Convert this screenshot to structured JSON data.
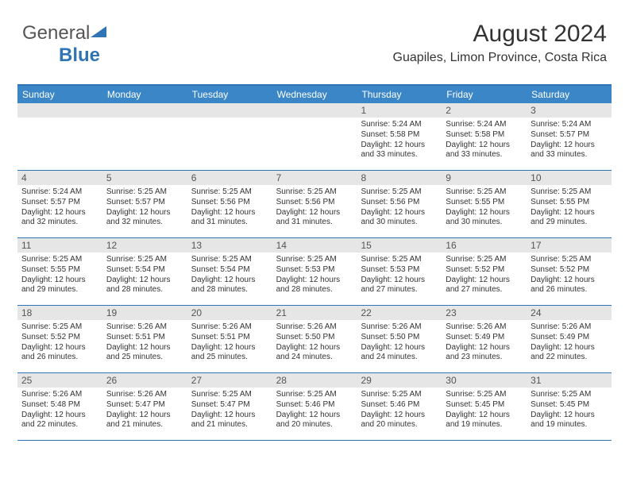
{
  "logo": {
    "text1": "General",
    "text2": "Blue",
    "accent_color": "#2f75b5"
  },
  "header": {
    "title": "August 2024",
    "subtitle": "Guapiles, Limon Province, Costa Rica",
    "title_fontsize": 30,
    "subtitle_fontsize": 16
  },
  "calendar": {
    "type": "table",
    "header_bg": "#3b86c6",
    "header_text_color": "#ffffff",
    "border_color": "#2f75b5",
    "daynum_bg": "#e6e6e6",
    "body_fontsize": 10,
    "weekday_fontsize": 12,
    "weekdays": [
      "Sunday",
      "Monday",
      "Tuesday",
      "Wednesday",
      "Thursday",
      "Friday",
      "Saturday"
    ],
    "weeks": [
      [
        {
          "num": "",
          "lines": []
        },
        {
          "num": "",
          "lines": []
        },
        {
          "num": "",
          "lines": []
        },
        {
          "num": "",
          "lines": []
        },
        {
          "num": "1",
          "lines": [
            "Sunrise: 5:24 AM",
            "Sunset: 5:58 PM",
            "Daylight: 12 hours and 33 minutes."
          ]
        },
        {
          "num": "2",
          "lines": [
            "Sunrise: 5:24 AM",
            "Sunset: 5:58 PM",
            "Daylight: 12 hours and 33 minutes."
          ]
        },
        {
          "num": "3",
          "lines": [
            "Sunrise: 5:24 AM",
            "Sunset: 5:57 PM",
            "Daylight: 12 hours and 33 minutes."
          ]
        }
      ],
      [
        {
          "num": "4",
          "lines": [
            "Sunrise: 5:24 AM",
            "Sunset: 5:57 PM",
            "Daylight: 12 hours and 32 minutes."
          ]
        },
        {
          "num": "5",
          "lines": [
            "Sunrise: 5:25 AM",
            "Sunset: 5:57 PM",
            "Daylight: 12 hours and 32 minutes."
          ]
        },
        {
          "num": "6",
          "lines": [
            "Sunrise: 5:25 AM",
            "Sunset: 5:56 PM",
            "Daylight: 12 hours and 31 minutes."
          ]
        },
        {
          "num": "7",
          "lines": [
            "Sunrise: 5:25 AM",
            "Sunset: 5:56 PM",
            "Daylight: 12 hours and 31 minutes."
          ]
        },
        {
          "num": "8",
          "lines": [
            "Sunrise: 5:25 AM",
            "Sunset: 5:56 PM",
            "Daylight: 12 hours and 30 minutes."
          ]
        },
        {
          "num": "9",
          "lines": [
            "Sunrise: 5:25 AM",
            "Sunset: 5:55 PM",
            "Daylight: 12 hours and 30 minutes."
          ]
        },
        {
          "num": "10",
          "lines": [
            "Sunrise: 5:25 AM",
            "Sunset: 5:55 PM",
            "Daylight: 12 hours and 29 minutes."
          ]
        }
      ],
      [
        {
          "num": "11",
          "lines": [
            "Sunrise: 5:25 AM",
            "Sunset: 5:55 PM",
            "Daylight: 12 hours and 29 minutes."
          ]
        },
        {
          "num": "12",
          "lines": [
            "Sunrise: 5:25 AM",
            "Sunset: 5:54 PM",
            "Daylight: 12 hours and 28 minutes."
          ]
        },
        {
          "num": "13",
          "lines": [
            "Sunrise: 5:25 AM",
            "Sunset: 5:54 PM",
            "Daylight: 12 hours and 28 minutes."
          ]
        },
        {
          "num": "14",
          "lines": [
            "Sunrise: 5:25 AM",
            "Sunset: 5:53 PM",
            "Daylight: 12 hours and 28 minutes."
          ]
        },
        {
          "num": "15",
          "lines": [
            "Sunrise: 5:25 AM",
            "Sunset: 5:53 PM",
            "Daylight: 12 hours and 27 minutes."
          ]
        },
        {
          "num": "16",
          "lines": [
            "Sunrise: 5:25 AM",
            "Sunset: 5:52 PM",
            "Daylight: 12 hours and 27 minutes."
          ]
        },
        {
          "num": "17",
          "lines": [
            "Sunrise: 5:25 AM",
            "Sunset: 5:52 PM",
            "Daylight: 12 hours and 26 minutes."
          ]
        }
      ],
      [
        {
          "num": "18",
          "lines": [
            "Sunrise: 5:25 AM",
            "Sunset: 5:52 PM",
            "Daylight: 12 hours and 26 minutes."
          ]
        },
        {
          "num": "19",
          "lines": [
            "Sunrise: 5:26 AM",
            "Sunset: 5:51 PM",
            "Daylight: 12 hours and 25 minutes."
          ]
        },
        {
          "num": "20",
          "lines": [
            "Sunrise: 5:26 AM",
            "Sunset: 5:51 PM",
            "Daylight: 12 hours and 25 minutes."
          ]
        },
        {
          "num": "21",
          "lines": [
            "Sunrise: 5:26 AM",
            "Sunset: 5:50 PM",
            "Daylight: 12 hours and 24 minutes."
          ]
        },
        {
          "num": "22",
          "lines": [
            "Sunrise: 5:26 AM",
            "Sunset: 5:50 PM",
            "Daylight: 12 hours and 24 minutes."
          ]
        },
        {
          "num": "23",
          "lines": [
            "Sunrise: 5:26 AM",
            "Sunset: 5:49 PM",
            "Daylight: 12 hours and 23 minutes."
          ]
        },
        {
          "num": "24",
          "lines": [
            "Sunrise: 5:26 AM",
            "Sunset: 5:49 PM",
            "Daylight: 12 hours and 22 minutes."
          ]
        }
      ],
      [
        {
          "num": "25",
          "lines": [
            "Sunrise: 5:26 AM",
            "Sunset: 5:48 PM",
            "Daylight: 12 hours and 22 minutes."
          ]
        },
        {
          "num": "26",
          "lines": [
            "Sunrise: 5:26 AM",
            "Sunset: 5:47 PM",
            "Daylight: 12 hours and 21 minutes."
          ]
        },
        {
          "num": "27",
          "lines": [
            "Sunrise: 5:25 AM",
            "Sunset: 5:47 PM",
            "Daylight: 12 hours and 21 minutes."
          ]
        },
        {
          "num": "28",
          "lines": [
            "Sunrise: 5:25 AM",
            "Sunset: 5:46 PM",
            "Daylight: 12 hours and 20 minutes."
          ]
        },
        {
          "num": "29",
          "lines": [
            "Sunrise: 5:25 AM",
            "Sunset: 5:46 PM",
            "Daylight: 12 hours and 20 minutes."
          ]
        },
        {
          "num": "30",
          "lines": [
            "Sunrise: 5:25 AM",
            "Sunset: 5:45 PM",
            "Daylight: 12 hours and 19 minutes."
          ]
        },
        {
          "num": "31",
          "lines": [
            "Sunrise: 5:25 AM",
            "Sunset: 5:45 PM",
            "Daylight: 12 hours and 19 minutes."
          ]
        }
      ]
    ]
  }
}
